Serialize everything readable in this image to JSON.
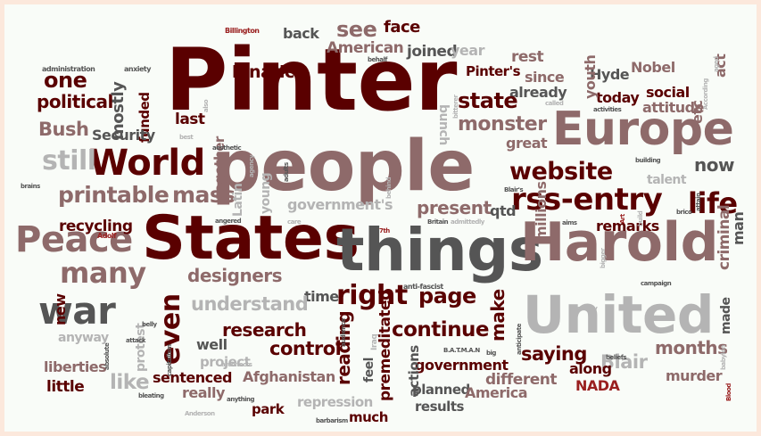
{
  "colors": {
    "background": "#f9fcf8",
    "frame": "#fce8dc",
    "palette": [
      "#5a0000",
      "#8e6a6a",
      "#555555",
      "#b4b4b4",
      "#9a2020"
    ]
  },
  "words": [
    {
      "text": "Pinter",
      "color": "#5a0000"
    },
    {
      "text": "people",
      "color": "#8e6a6a"
    },
    {
      "text": "States",
      "color": "#5a0000"
    },
    {
      "text": "things",
      "color": "#555555"
    },
    {
      "text": "Harold",
      "color": "#8e6a6a"
    },
    {
      "text": "United",
      "color": "#b4b4b4"
    },
    {
      "text": "Europe",
      "color": "#8e6a6a"
    },
    {
      "text": "World",
      "color": "#5a0000"
    },
    {
      "text": "war",
      "color": "#555555"
    },
    {
      "text": "Peace",
      "color": "#8e6a6a"
    },
    {
      "text": "many",
      "color": "#8e6a6a"
    },
    {
      "text": "printable",
      "color": "#8e6a6a"
    },
    {
      "text": "mass",
      "color": "#8e6a6a"
    },
    {
      "text": "rss-entry",
      "color": "#5a0000"
    },
    {
      "text": "website",
      "color": "#5a0000"
    },
    {
      "text": "life",
      "color": "#5a0000"
    },
    {
      "text": "still",
      "color": "#b4b4b4"
    },
    {
      "text": "Bush",
      "color": "#8e6a6a"
    },
    {
      "text": "one",
      "color": "#5a0000"
    },
    {
      "text": "political",
      "color": "#5a0000"
    },
    {
      "text": "see",
      "color": "#8e6a6a"
    },
    {
      "text": "face",
      "color": "#5a0000"
    },
    {
      "text": "lunatics",
      "color": "#5a0000"
    },
    {
      "text": "back",
      "color": "#555555"
    },
    {
      "text": "American",
      "color": "#8e6a6a"
    },
    {
      "text": "joined",
      "color": "#555555"
    },
    {
      "text": "year",
      "color": "#b4b4b4"
    },
    {
      "text": "rest",
      "color": "#8e6a6a"
    },
    {
      "text": "since",
      "color": "#8e6a6a"
    },
    {
      "text": "already",
      "color": "#555555"
    },
    {
      "text": "Pinter's",
      "color": "#5a0000"
    },
    {
      "text": "bunch",
      "color": "#b4b4b4"
    },
    {
      "text": "Hyde",
      "color": "#555555"
    },
    {
      "text": "Nobel",
      "color": "#8e6a6a"
    },
    {
      "text": "act",
      "color": "#8e6a6a"
    },
    {
      "text": "social",
      "color": "#5a0000"
    },
    {
      "text": "attitude",
      "color": "#8e6a6a"
    },
    {
      "text": "today",
      "color": "#5a0000"
    },
    {
      "text": "youth",
      "color": "#8e6a6a"
    },
    {
      "text": "etc",
      "color": "#8e6a6a"
    },
    {
      "text": "state",
      "color": "#5a0000"
    },
    {
      "text": "monster",
      "color": "#8e6a6a"
    },
    {
      "text": "great",
      "color": "#8e6a6a"
    },
    {
      "text": "now",
      "color": "#555555"
    },
    {
      "text": "mostly",
      "color": "#555555"
    },
    {
      "text": "funded",
      "color": "#5a0000"
    },
    {
      "text": "last",
      "color": "#5a0000"
    },
    {
      "text": "Security",
      "color": "#555555"
    },
    {
      "text": "together",
      "color": "#8e6a6a"
    },
    {
      "text": "Latin",
      "color": "#b4b4b4"
    },
    {
      "text": "young",
      "color": "#b4b4b4"
    },
    {
      "text": "talent",
      "color": "#b4b4b4"
    },
    {
      "text": "present",
      "color": "#8e6a6a"
    },
    {
      "text": "qtd",
      "color": "#555555"
    },
    {
      "text": "millions",
      "color": "#8e6a6a"
    },
    {
      "text": "government's",
      "color": "#b4b4b4"
    },
    {
      "text": "remarks",
      "color": "#5a0000"
    },
    {
      "text": "criminal",
      "color": "#8e6a6a"
    },
    {
      "text": "man",
      "color": "#555555"
    },
    {
      "text": "recycling",
      "color": "#5a0000"
    },
    {
      "text": "designers",
      "color": "#8e6a6a"
    },
    {
      "text": "time",
      "color": "#555555"
    },
    {
      "text": "right",
      "color": "#5a0000"
    },
    {
      "text": "page",
      "color": "#5a0000"
    },
    {
      "text": "make",
      "color": "#5a0000"
    },
    {
      "text": "understand",
      "color": "#b4b4b4"
    },
    {
      "text": "new",
      "color": "#5a0000"
    },
    {
      "text": "even",
      "color": "#5a0000"
    },
    {
      "text": "research",
      "color": "#5a0000"
    },
    {
      "text": "control",
      "color": "#5a0000"
    },
    {
      "text": "continue",
      "color": "#5a0000"
    },
    {
      "text": "reading",
      "color": "#5a0000"
    },
    {
      "text": "saying",
      "color": "#5a0000"
    },
    {
      "text": "months",
      "color": "#8e6a6a"
    },
    {
      "text": "Blair",
      "color": "#b4b4b4"
    },
    {
      "text": "made",
      "color": "#555555"
    },
    {
      "text": "well",
      "color": "#555555"
    },
    {
      "text": "project",
      "color": "#b4b4b4"
    },
    {
      "text": "government",
      "color": "#5a0000"
    },
    {
      "text": "premeditated",
      "color": "#5a0000"
    },
    {
      "text": "actions",
      "color": "#555555"
    },
    {
      "text": "feel",
      "color": "#555555"
    },
    {
      "text": "planned",
      "color": "#555555"
    },
    {
      "text": "different",
      "color": "#8e6a6a"
    },
    {
      "text": "along",
      "color": "#5a0000"
    },
    {
      "text": "murder",
      "color": "#8e6a6a"
    },
    {
      "text": "liberties",
      "color": "#8e6a6a"
    },
    {
      "text": "little",
      "color": "#5a0000"
    },
    {
      "text": "protest",
      "color": "#b4b4b4"
    },
    {
      "text": "like",
      "color": "#b4b4b4"
    },
    {
      "text": "sentenced",
      "color": "#5a0000"
    },
    {
      "text": "Afghanistan",
      "color": "#8e6a6a"
    },
    {
      "text": "really",
      "color": "#8e6a6a"
    },
    {
      "text": "repression",
      "color": "#b4b4b4"
    },
    {
      "text": "park",
      "color": "#5a0000"
    },
    {
      "text": "much",
      "color": "#5a0000"
    },
    {
      "text": "results",
      "color": "#555555"
    },
    {
      "text": "America",
      "color": "#8e6a6a"
    },
    {
      "text": "NADA",
      "color": "#9a2020"
    },
    {
      "text": "anyway",
      "color": "#b4b4b4"
    },
    {
      "text": "administration",
      "color": "#555555"
    },
    {
      "text": "anxiety",
      "color": "#555555"
    },
    {
      "text": "Billington",
      "color": "#9a2020"
    },
    {
      "text": "behalf",
      "color": "#555555"
    },
    {
      "text": "bitterer",
      "color": "#b4b4b4"
    },
    {
      "text": "called",
      "color": "#b4b4b4"
    },
    {
      "text": "activities",
      "color": "#555555"
    },
    {
      "text": "aged",
      "color": "#b4b4b4"
    },
    {
      "text": "According",
      "color": "#b4b4b4"
    },
    {
      "text": "also",
      "color": "#b4b4b4"
    },
    {
      "text": "best",
      "color": "#b4b4b4"
    },
    {
      "text": "aesthetic",
      "color": "#555555"
    },
    {
      "text": "agency",
      "color": "#b4b4b4"
    },
    {
      "text": "adults",
      "color": "#555555"
    },
    {
      "text": "behind",
      "color": "#b4b4b4"
    },
    {
      "text": "Blair's",
      "color": "#555555"
    },
    {
      "text": "building",
      "color": "#555555"
    },
    {
      "text": "attain",
      "color": "#555555"
    },
    {
      "text": "brains",
      "color": "#555555"
    },
    {
      "text": "angered",
      "color": "#555555"
    },
    {
      "text": "care",
      "color": "#b4b4b4"
    },
    {
      "text": "Britain",
      "color": "#555555"
    },
    {
      "text": "admittedly",
      "color": "#b4b4b4"
    },
    {
      "text": "7th",
      "color": "#9a2020"
    },
    {
      "text": "aims",
      "color": "#555555"
    },
    {
      "text": "Art",
      "color": "#9a2020"
    },
    {
      "text": "build",
      "color": "#b4b4b4"
    },
    {
      "text": "brico",
      "color": "#555555"
    },
    {
      "text": "Adolf",
      "color": "#9a2020"
    },
    {
      "text": "belly",
      "color": "#555555"
    },
    {
      "text": "anti-fascist",
      "color": "#555555"
    },
    {
      "text": "bigger",
      "color": "#b4b4b4"
    },
    {
      "text": "actually",
      "color": "#b4b4b4"
    },
    {
      "text": "campaign",
      "color": "#555555"
    },
    {
      "text": "attack",
      "color": "#555555"
    },
    {
      "text": "capitalism",
      "color": "#555555"
    },
    {
      "text": "architects",
      "color": "#b4b4b4"
    },
    {
      "text": "audience",
      "color": "#555555"
    },
    {
      "text": "Iraq",
      "color": "#b4b4b4"
    },
    {
      "text": "B.A.T.M.A.N",
      "color": "#555555"
    },
    {
      "text": "big",
      "color": "#555555"
    },
    {
      "text": "anticipate",
      "color": "#555555"
    },
    {
      "text": "beliefs",
      "color": "#555555"
    },
    {
      "text": "babylon",
      "color": "#b4b4b4"
    },
    {
      "text": "absolute",
      "color": "#555555"
    },
    {
      "text": "bleating",
      "color": "#555555"
    },
    {
      "text": "anything",
      "color": "#555555"
    },
    {
      "text": "Anderson",
      "color": "#b4b4b4"
    },
    {
      "text": "barbarism",
      "color": "#555555"
    },
    {
      "text": "Blood",
      "color": "#9a2020"
    }
  ]
}
